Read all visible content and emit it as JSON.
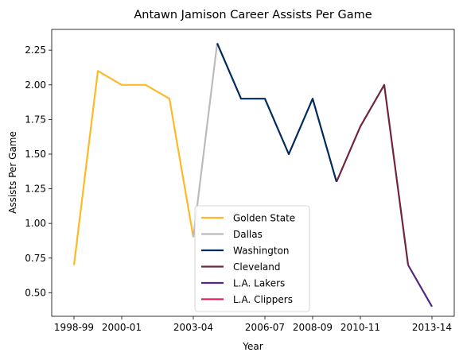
{
  "chart_data": {
    "type": "line",
    "title": "Antawn Jamison Career Assists Per Game",
    "xlabel": "Year",
    "ylabel": "Assists Per Game",
    "x_categories": [
      "1998-99",
      "1999-00",
      "2000-01",
      "2001-02",
      "2002-03",
      "2003-04",
      "2004-05",
      "2005-06",
      "2006-07",
      "2007-08",
      "2008-09",
      "2009-10",
      "2010-11",
      "2011-12",
      "2012-13",
      "2013-14"
    ],
    "x_tick_labels": [
      "1998-99",
      "2000-01",
      "2003-04",
      "2006-07",
      "2008-09",
      "2010-11",
      "2013-14"
    ],
    "ylim": [
      0.33,
      2.4
    ],
    "y_ticks": [
      0.5,
      0.75,
      1.0,
      1.25,
      1.5,
      1.75,
      2.0,
      2.25
    ],
    "y_tick_labels": [
      "0.50",
      "0.75",
      "1.00",
      "1.25",
      "1.50",
      "1.75",
      "2.00",
      "2.25"
    ],
    "grid": false,
    "legend_position": "lower-center",
    "series": [
      {
        "name": "Golden State",
        "color": "#FDB927",
        "points": [
          [
            "1998-99",
            0.7
          ],
          [
            "1999-00",
            2.1
          ],
          [
            "2000-01",
            2.0
          ],
          [
            "2001-02",
            2.0
          ],
          [
            "2002-03",
            1.9
          ],
          [
            "2003-04",
            0.9
          ]
        ]
      },
      {
        "name": "Dallas",
        "color": "#BBBBBB",
        "points": [
          [
            "2003-04",
            0.9
          ],
          [
            "2004-05",
            2.3
          ]
        ]
      },
      {
        "name": "Washington",
        "color": "#002B5C",
        "points": [
          [
            "2004-05",
            2.3
          ],
          [
            "2005-06",
            1.9
          ],
          [
            "2006-07",
            1.9
          ],
          [
            "2007-08",
            1.5
          ],
          [
            "2008-09",
            1.9
          ],
          [
            "2009-10",
            1.3
          ]
        ]
      },
      {
        "name": "Cleveland",
        "color": "#6F263D",
        "points": [
          [
            "2009-10",
            1.3
          ],
          [
            "2010-11",
            1.7
          ],
          [
            "2011-12",
            2.0
          ],
          [
            "2012-13",
            0.7
          ]
        ]
      },
      {
        "name": "L.A. Lakers",
        "color": "#552583",
        "points": [
          [
            "2012-13",
            0.7
          ],
          [
            "2013-14",
            0.4
          ]
        ]
      },
      {
        "name": "L.A. Clippers",
        "color": "#E31A5A",
        "points": []
      }
    ]
  }
}
